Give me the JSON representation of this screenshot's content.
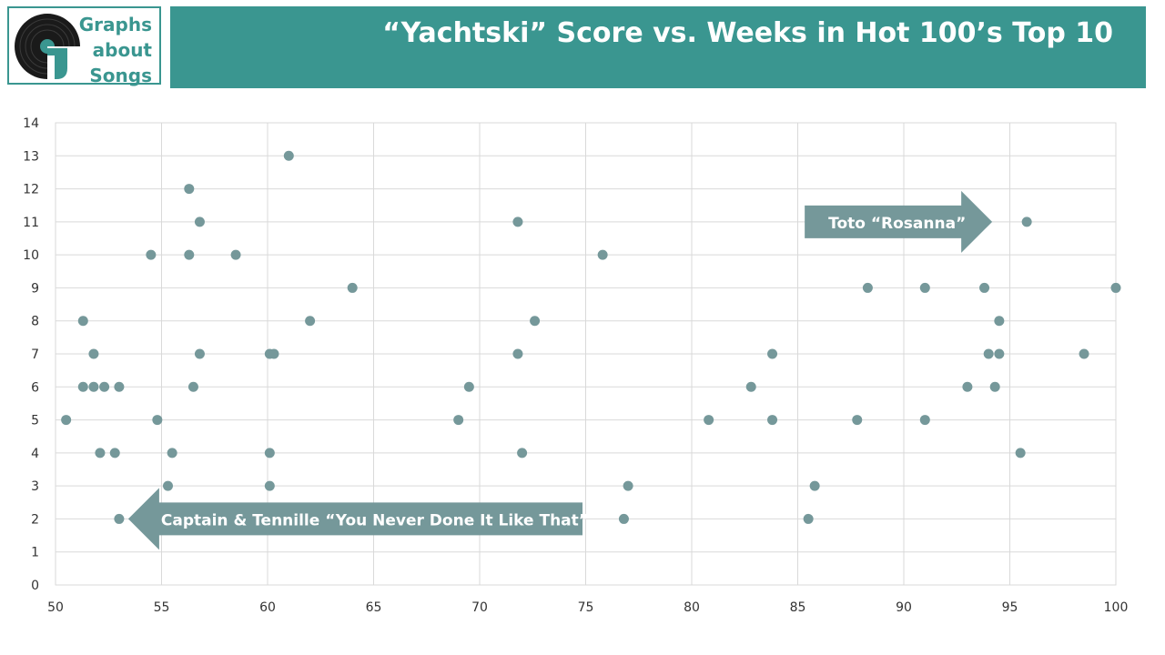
{
  "header": {
    "logo_lines": [
      "Graphs",
      "about",
      "Songs"
    ],
    "title": "“Yachtski” Score vs. Weeks in Hot 100’s Top 10"
  },
  "colors": {
    "accent": "#3a9690",
    "point": "#75989a",
    "arrow": "#75989a",
    "grid": "#d9d9d9"
  },
  "chart_data": {
    "type": "scatter",
    "title": "“Yachtski” Score vs. Weeks in Hot 100’s Top 10",
    "xlabel": "",
    "ylabel": "",
    "xlim": [
      50,
      100
    ],
    "ylim": [
      0,
      14
    ],
    "xticks": [
      50,
      55,
      60,
      65,
      70,
      75,
      80,
      85,
      90,
      95,
      100
    ],
    "yticks": [
      0,
      1,
      2,
      3,
      4,
      5,
      6,
      7,
      8,
      9,
      10,
      11,
      12,
      13,
      14
    ],
    "grid": true,
    "legend": "none",
    "points": [
      {
        "x": 50.5,
        "y": 5
      },
      {
        "x": 51.3,
        "y": 8
      },
      {
        "x": 51.3,
        "y": 6
      },
      {
        "x": 51.8,
        "y": 7
      },
      {
        "x": 51.8,
        "y": 6
      },
      {
        "x": 52.1,
        "y": 4
      },
      {
        "x": 52.3,
        "y": 6
      },
      {
        "x": 52.8,
        "y": 4
      },
      {
        "x": 53.0,
        "y": 6
      },
      {
        "x": 53.0,
        "y": 2
      },
      {
        "x": 54.5,
        "y": 10
      },
      {
        "x": 54.8,
        "y": 5
      },
      {
        "x": 55.3,
        "y": 3
      },
      {
        "x": 55.5,
        "y": 4
      },
      {
        "x": 56.3,
        "y": 12
      },
      {
        "x": 56.3,
        "y": 10
      },
      {
        "x": 56.5,
        "y": 6
      },
      {
        "x": 56.8,
        "y": 11
      },
      {
        "x": 56.8,
        "y": 7
      },
      {
        "x": 58.5,
        "y": 10
      },
      {
        "x": 60.1,
        "y": 7
      },
      {
        "x": 60.3,
        "y": 7
      },
      {
        "x": 60.1,
        "y": 4
      },
      {
        "x": 60.1,
        "y": 3
      },
      {
        "x": 61.0,
        "y": 13
      },
      {
        "x": 62.0,
        "y": 8
      },
      {
        "x": 64.0,
        "y": 9
      },
      {
        "x": 69.0,
        "y": 5
      },
      {
        "x": 69.5,
        "y": 6
      },
      {
        "x": 71.8,
        "y": 11
      },
      {
        "x": 71.8,
        "y": 7
      },
      {
        "x": 72.0,
        "y": 4
      },
      {
        "x": 72.6,
        "y": 8
      },
      {
        "x": 75.8,
        "y": 10
      },
      {
        "x": 76.8,
        "y": 2
      },
      {
        "x": 77.0,
        "y": 3
      },
      {
        "x": 80.8,
        "y": 5
      },
      {
        "x": 82.8,
        "y": 6
      },
      {
        "x": 83.8,
        "y": 7
      },
      {
        "x": 83.8,
        "y": 5
      },
      {
        "x": 85.5,
        "y": 2
      },
      {
        "x": 85.8,
        "y": 3
      },
      {
        "x": 87.8,
        "y": 5
      },
      {
        "x": 88.3,
        "y": 9
      },
      {
        "x": 91.0,
        "y": 9
      },
      {
        "x": 91.0,
        "y": 5
      },
      {
        "x": 93.0,
        "y": 6
      },
      {
        "x": 93.8,
        "y": 9
      },
      {
        "x": 94.0,
        "y": 7
      },
      {
        "x": 94.3,
        "y": 6
      },
      {
        "x": 94.5,
        "y": 8
      },
      {
        "x": 94.5,
        "y": 7
      },
      {
        "x": 95.5,
        "y": 4
      },
      {
        "x": 95.8,
        "y": 11
      },
      {
        "x": 98.5,
        "y": 7
      },
      {
        "x": 100.0,
        "y": 9
      }
    ],
    "annotations": [
      {
        "text": "Toto “Rosanna”",
        "x": 95.8,
        "y": 11,
        "direction": "right"
      },
      {
        "text": "Captain & Tennille “You Never Done It Like That”",
        "x": 53.0,
        "y": 2,
        "direction": "left"
      }
    ]
  }
}
